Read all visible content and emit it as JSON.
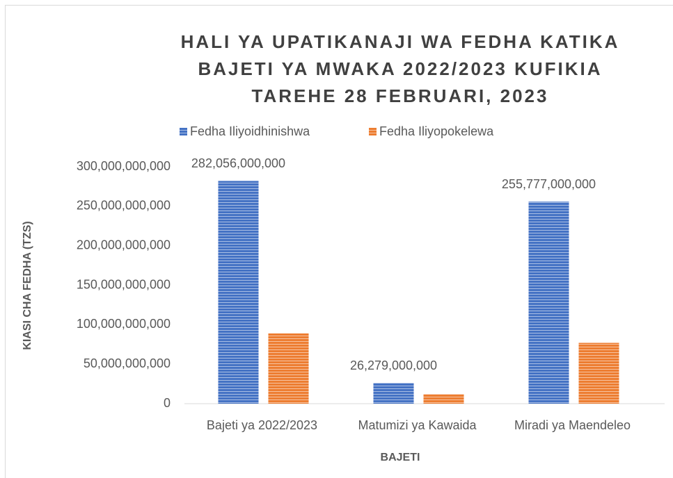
{
  "chart_data": {
    "type": "bar",
    "title": [
      "HALI YA UPATIKANAJI  WA FEDHA KATIKA",
      "BAJETI YA MWAKA 2022/2023 KUFIKIA",
      "TAREHE 28 FEBRUARI, 2023"
    ],
    "xlabel": "BAJETI",
    "ylabel": "KIASI CHA FEDHA (TZS)",
    "categories": [
      "Bajeti ya 2022/2023",
      "Matumizi ya Kawaida",
      "Miradi ya Maendeleo"
    ],
    "series": [
      {
        "name": "Fedha Iliyoidhinishwa",
        "color": "#4472c4",
        "values": [
          282056000000,
          26279000000,
          255777000000
        ],
        "value_labels": [
          "282,056,000,000",
          "26,279,000,000",
          "255,777,000,000"
        ]
      },
      {
        "name": "Fedha Iliyopokelewa",
        "color": "#ed7d31",
        "values": [
          89000000000,
          12000000000,
          77000000000
        ]
      }
    ],
    "ylim": [
      0,
      300000000000
    ],
    "yticks": [
      0,
      {
        "value": 50000000000,
        "label": "50,000,000,000"
      },
      {
        "value": 100000000000,
        "label": "100,000,000,000"
      },
      {
        "value": 150000000000,
        "label": "150,000,000,000"
      },
      {
        "value": 200000000000,
        "label": "200,000,000,000"
      },
      {
        "value": 250000000000,
        "label": "250,000,000,000"
      },
      {
        "value": 300000000000,
        "label": "300,000,000,000"
      }
    ],
    "legend": "top",
    "grid": false
  }
}
